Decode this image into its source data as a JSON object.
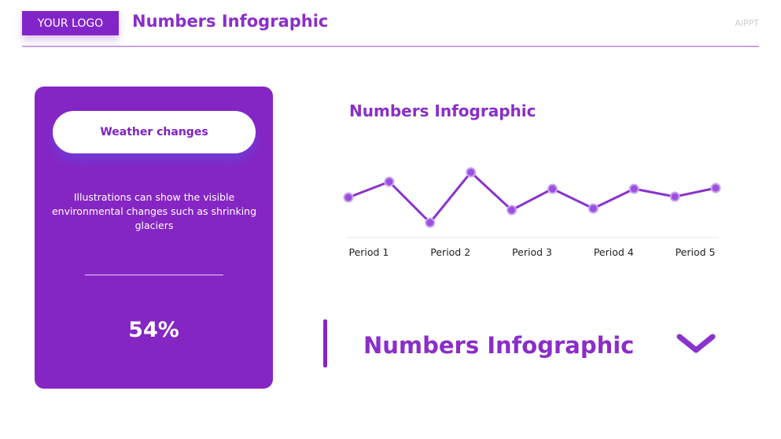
{
  "header": {
    "logo": "YOUR LOGO",
    "title": "Numbers Infographic",
    "brand": "AiPPT"
  },
  "card": {
    "pill": "Weather changes",
    "description": "Illustrations can show the visible environmental changes such as shrinking glaciers",
    "stat": "54%"
  },
  "chart_data": {
    "type": "line",
    "title": "Numbers Infographic",
    "categories": [
      "Period 1",
      null,
      "Period 2",
      null,
      "Period 3",
      null,
      "Period 4",
      null,
      "Period 5",
      null
    ],
    "values": [
      49,
      69,
      17,
      81,
      33,
      60,
      35,
      60,
      50,
      61
    ],
    "color": "#8a33cc",
    "ylim": [
      0,
      100
    ]
  },
  "footer": {
    "title": "Numbers Infographic"
  }
}
